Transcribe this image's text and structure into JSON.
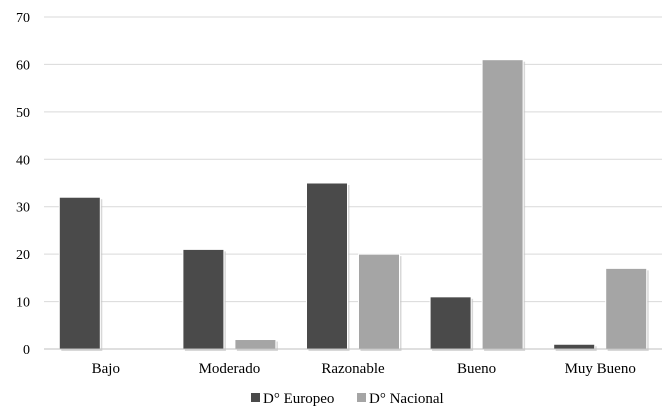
{
  "chart_data": {
    "type": "bar",
    "title": "",
    "xlabel": "",
    "ylabel": "",
    "categories": [
      "Bajo",
      "Moderado",
      "Razonable",
      "Bueno",
      "Muy Bueno"
    ],
    "series": [
      {
        "name": "D° Europeo",
        "values": [
          32,
          21,
          35,
          11,
          1
        ],
        "color": "#4a4a4a"
      },
      {
        "name": "D° Nacional",
        "values": [
          0,
          2,
          20,
          61,
          17
        ],
        "color": "#a5a5a5"
      }
    ],
    "ylim": [
      0,
      70
    ],
    "yticks": [
      0,
      10,
      20,
      30,
      40,
      50,
      60,
      70
    ],
    "grid": true,
    "legend_position": "bottom"
  }
}
